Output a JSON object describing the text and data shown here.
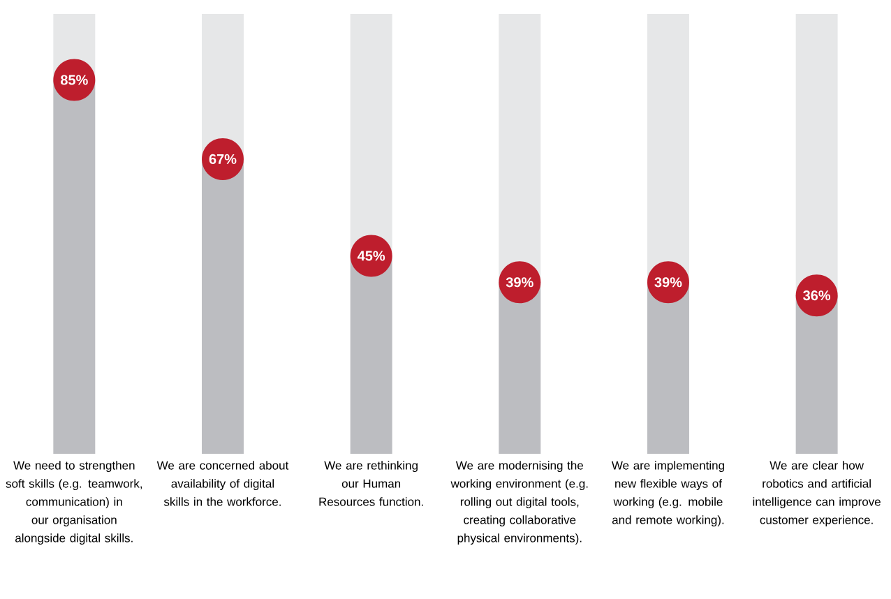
{
  "chart_data": {
    "type": "bar",
    "categories": [
      "We need to strengthen soft skills (e.g. teamwork, communication) in our organisation alongside digital skills.",
      "We are concerned about availability of digital skills in the workforce.",
      "We are rethinking our Human Resources function.",
      "We are modernising the working environment (e.g. rolling out digital tools, creating collaborative physical environments).",
      "We are implementing new flexible ways of working (e.g. mobile and remote working).",
      "We are clear how robotics and artificial intelligence can improve customer experience."
    ],
    "ylim": [
      0,
      100
    ],
    "tick_labels": "x",
    "stacked": true,
    "series": [
      {
        "color": "#bcbdc1",
        "values": [
          85,
          67,
          45,
          39,
          39,
          36
        ],
        "value_labels": [
          "85%",
          "67%",
          "45%",
          "39%",
          "39%",
          "36%"
        ]
      },
      {
        "color": "#e6e7e8",
        "values": [
          15,
          33,
          55,
          61,
          61,
          64
        ]
      }
    ]
  }
}
